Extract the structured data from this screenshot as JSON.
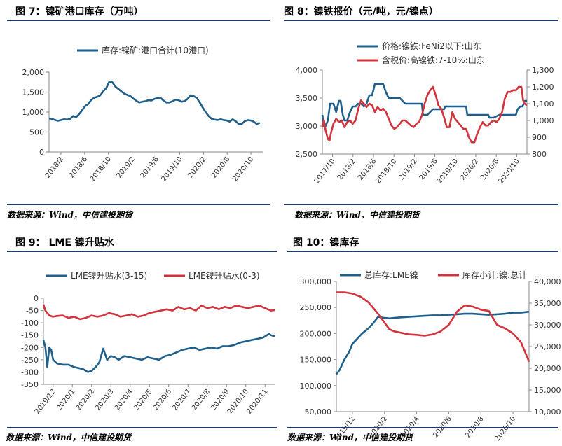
{
  "colors": {
    "blue": "#1f5f8b",
    "red": "#d2343d",
    "rule": "#1f3a6b"
  },
  "panels": [
    {
      "title": "图 7：镍矿港口库存（万吨）",
      "source": "数据来源：Wind，中信建投期货"
    },
    {
      "title": "图 8：镍铁报价（元/吨，元/镍点）",
      "source": "数据来源：Wind，中信建投期货"
    },
    {
      "title": "图 9：  LME 镍升贴水",
      "source": "数据来源：Wind，中信建投期货"
    },
    {
      "title": "图 10：镍库存",
      "source": "数据来源：Wind，中信建投期货"
    }
  ],
  "chart_data": [
    {
      "type": "line",
      "title": "",
      "x_tick_labels": [
        "2018/2",
        "2018/6",
        "2018/10",
        "2019/2",
        "2019/6",
        "2019/10",
        "2020/2",
        "2020/6",
        "2020/10"
      ],
      "x_range": [
        0,
        35.5
      ],
      "y_ticks": [
        "0",
        "500",
        "1,000",
        "1,500",
        "2,000"
      ],
      "ylim": [
        0,
        2000
      ],
      "legend_position": "top",
      "series": [
        {
          "name": "库存:镍矿:港口合计(10港口)",
          "color": "#1f5f8b",
          "x": [
            0,
            0.5,
            1,
            1.5,
            2,
            2.5,
            3,
            3.5,
            4,
            4.5,
            5,
            5.5,
            6,
            6.5,
            7,
            7.5,
            8,
            8.5,
            9,
            9.5,
            10,
            10.5,
            11,
            11.5,
            12,
            12.5,
            13,
            13.5,
            14,
            14.5,
            15,
            15.5,
            16,
            16.5,
            17,
            17.5,
            18,
            18.5,
            19,
            19.5,
            20,
            20.5,
            21,
            21.5,
            22,
            22.5,
            23,
            23.5,
            24,
            24.5,
            25,
            25.5,
            26,
            26.5,
            27,
            27.5,
            28,
            28.5,
            29,
            29.5,
            30,
            30.5,
            31,
            31.5,
            32,
            32.5,
            33,
            33.5,
            34,
            34.5,
            35
          ],
          "values": [
            840,
            830,
            800,
            780,
            800,
            820,
            810,
            830,
            900,
            870,
            950,
            1050,
            1150,
            1200,
            1300,
            1360,
            1380,
            1420,
            1520,
            1600,
            1760,
            1750,
            1640,
            1580,
            1520,
            1460,
            1430,
            1400,
            1340,
            1280,
            1240,
            1260,
            1270,
            1300,
            1290,
            1330,
            1350,
            1360,
            1290,
            1240,
            1240,
            1270,
            1310,
            1300,
            1260,
            1270,
            1330,
            1420,
            1400,
            1360,
            1250,
            1120,
            1000,
            900,
            830,
            810,
            800,
            820,
            800,
            790,
            760,
            820,
            770,
            700,
            700,
            770,
            800,
            790,
            760,
            700,
            730
          ]
        }
      ]
    },
    {
      "type": "line",
      "title": "",
      "x_tick_labels": [
        "2017/10",
        "2018/2",
        "2018/6",
        "2018/10",
        "2019/2",
        "2019/6",
        "2019/10",
        "2020/2",
        "2020/6",
        "2020/10"
      ],
      "x_range": [
        0,
        37
      ],
      "y_left_ticks": [
        "2,500",
        "3,000",
        "3,500",
        "4,000"
      ],
      "ylim_left": [
        2500,
        4000
      ],
      "y_right_ticks": [
        "800",
        "900",
        "1,000",
        "1,100",
        "1,200",
        "1,300"
      ],
      "ylim_right": [
        800,
        1300
      ],
      "legend_position": "top",
      "series": [
        {
          "name": "价格:镍铁:FeNi2以下:山东",
          "color": "#1f5f8b",
          "axis": "left",
          "x": [
            0,
            0.3,
            0.6,
            1,
            1.4,
            2,
            2.5,
            3,
            3.3,
            3.7,
            4,
            4.5,
            5,
            5.5,
            6,
            6.5,
            7,
            7.5,
            8,
            8.5,
            9,
            9.5,
            10,
            11,
            11.5,
            12,
            13,
            14,
            14.5,
            15,
            16,
            17,
            18,
            18.2,
            19,
            20,
            21,
            22,
            22.2,
            23,
            24,
            25,
            26,
            26.2,
            27,
            28,
            29,
            30,
            30.2,
            31,
            32,
            33,
            34,
            35,
            35.3,
            35.8,
            36.2,
            36.6,
            37
          ],
          "values": [
            3200,
            3000,
            3000,
            3100,
            3400,
            3400,
            3250,
            3450,
            3450,
            3200,
            3100,
            3100,
            3250,
            3350,
            3350,
            3400,
            3400,
            3350,
            3400,
            3550,
            3550,
            3750,
            3750,
            3750,
            3600,
            3500,
            3500,
            3500,
            3450,
            3400,
            3400,
            3400,
            3400,
            3200,
            3200,
            3300,
            3300,
            3300,
            3350,
            3350,
            3350,
            3350,
            3350,
            3200,
            3200,
            3200,
            3200,
            3200,
            3150,
            3150,
            3200,
            3200,
            3200,
            3200,
            3300,
            3350,
            3350,
            3450,
            3450
          ]
        },
        {
          "name": "含税价:高镍铁:7-10%:山东",
          "color": "#d2343d",
          "axis": "right",
          "x": [
            0,
            0.3,
            0.6,
            1,
            1.3,
            1.6,
            2,
            2.5,
            3,
            3.5,
            4,
            4.5,
            5,
            5.5,
            6,
            6.5,
            7,
            7.5,
            8,
            8.5,
            9,
            9.5,
            10,
            10.5,
            11,
            11.5,
            12,
            12.5,
            13,
            13.5,
            14,
            14.5,
            15,
            16,
            16.5,
            17,
            17.5,
            18,
            18.5,
            19,
            19.5,
            20,
            20.5,
            21,
            21.5,
            22,
            22.5,
            23,
            23.5,
            24,
            24.5,
            25,
            25.5,
            26,
            26.5,
            27,
            27.5,
            28,
            28.5,
            29,
            29.5,
            30,
            30.5,
            31,
            31.5,
            32,
            32.5,
            33,
            33.5,
            34,
            34.5,
            35,
            35.5,
            36,
            36.3,
            36.6,
            37
          ],
          "values": [
            960,
            1000,
            940,
            890,
            880,
            930,
            980,
            1010,
            990,
            1000,
            960,
            990,
            1000,
            980,
            1000,
            1070,
            1120,
            1100,
            1080,
            1100,
            1090,
            1050,
            1080,
            1060,
            1070,
            1050,
            1010,
            970,
            950,
            960,
            980,
            1000,
            1000,
            970,
            960,
            980,
            990,
            1030,
            1100,
            1150,
            1180,
            1200,
            1150,
            1090,
            1070,
            1020,
            960,
            960,
            1050,
            1010,
            990,
            970,
            950,
            950,
            900,
            870,
            870,
            920,
            960,
            990,
            970,
            970,
            990,
            1000,
            990,
            1010,
            1050,
            1130,
            1170,
            1170,
            1180,
            1180,
            1200,
            1200,
            1120,
            1100,
            1090
          ]
        }
      ]
    },
    {
      "type": "line",
      "title": "",
      "x_tick_labels": [
        "2019/12",
        "2020/1",
        "2020/2",
        "2020/3",
        "2020/4",
        "2020/5",
        "2020/6",
        "2020/7",
        "2020/8",
        "2020/9",
        "2020/10",
        "2020/11"
      ],
      "x_range": [
        0,
        12
      ],
      "y_ticks": [
        "-350",
        "-300",
        "-250",
        "-200",
        "-150",
        "-100",
        "-50",
        "0"
      ],
      "ylim": [
        -350,
        0
      ],
      "legend_position": "top",
      "series": [
        {
          "name": "LME镍升贴水(3-15)",
          "color": "#1f5f8b",
          "x": [
            0,
            0.1,
            0.2,
            0.3,
            0.4,
            0.5,
            0.7,
            1,
            1.3,
            1.6,
            1.9,
            2.1,
            2.3,
            2.5,
            2.7,
            2.9,
            3.1,
            3.3,
            3.5,
            3.7,
            3.9,
            4.2,
            4.5,
            4.8,
            5.1,
            5.4,
            5.7,
            6,
            6.3,
            6.6,
            6.9,
            7.2,
            7.5,
            7.8,
            8.1,
            8.4,
            8.7,
            9,
            9.3,
            9.6,
            9.9,
            10.2,
            10.5,
            10.8,
            11.1,
            11.4,
            11.7,
            11.8,
            12
          ],
          "values": [
            -170,
            -200,
            -280,
            -200,
            -210,
            -250,
            -265,
            -270,
            -270,
            -280,
            -285,
            -290,
            -300,
            -295,
            -280,
            -260,
            -205,
            -250,
            -235,
            -240,
            -250,
            -235,
            -240,
            -245,
            -250,
            -240,
            -245,
            -250,
            -235,
            -230,
            -220,
            -210,
            -205,
            -200,
            -210,
            -205,
            -200,
            -205,
            -195,
            -195,
            -190,
            -180,
            -175,
            -170,
            -165,
            -160,
            -145,
            -150,
            -155
          ]
        },
        {
          "name": "LME镍升贴水(0-3)",
          "color": "#d2343d",
          "x": [
            0,
            0.1,
            0.2,
            0.3,
            0.5,
            0.7,
            1,
            1.3,
            1.6,
            1.9,
            2.2,
            2.5,
            2.8,
            3.1,
            3.4,
            3.7,
            4,
            4.3,
            4.6,
            4.9,
            5.2,
            5.5,
            5.8,
            6.1,
            6.4,
            6.7,
            7,
            7.3,
            7.6,
            7.9,
            8.2,
            8.5,
            8.8,
            9.1,
            9.4,
            9.7,
            10,
            10.3,
            10.6,
            10.9,
            11.2,
            11.5,
            11.8,
            12
          ],
          "values": [
            -25,
            -50,
            -60,
            -70,
            -75,
            -72,
            -70,
            -80,
            -75,
            -85,
            -80,
            -70,
            -75,
            -70,
            -60,
            -65,
            -75,
            -70,
            -65,
            -75,
            -70,
            -60,
            -55,
            -50,
            -45,
            -50,
            -35,
            -45,
            -40,
            -50,
            -30,
            -40,
            -35,
            -45,
            -35,
            -40,
            -30,
            -35,
            -40,
            -35,
            -30,
            -40,
            -50,
            -48
          ]
        }
      ]
    },
    {
      "type": "line",
      "title": "",
      "x_tick_labels": [
        "2019/12",
        "2020/2",
        "2020/4",
        "2020/6",
        "2020/8",
        "2020/10"
      ],
      "x_range": [
        0,
        12
      ],
      "y_left_ticks": [
        "50,000",
        "100,000",
        "150,000",
        "200,000",
        "250,000",
        "300,000"
      ],
      "ylim_left": [
        50000,
        300000
      ],
      "y_right_ticks": [
        "10,000",
        "15,000",
        "20,000",
        "25,000",
        "30,000",
        "35,000",
        "40,000"
      ],
      "ylim_right": [
        10000,
        40000
      ],
      "legend_position": "top",
      "series": [
        {
          "name": "总库存:LME镍",
          "color": "#1f5f8b",
          "axis": "left",
          "x": [
            0,
            0.2,
            0.5,
            0.8,
            1,
            1.3,
            1.6,
            2,
            2.3,
            2.6,
            3,
            3.3,
            3.6,
            4,
            4.5,
            5,
            5.5,
            6,
            6.5,
            7,
            7.5,
            8,
            8.5,
            9,
            9.5,
            10,
            10.5,
            11,
            11.5,
            12
          ],
          "values": [
            122000,
            130000,
            150000,
            165000,
            180000,
            190000,
            200000,
            210000,
            220000,
            232000,
            230000,
            229000,
            230000,
            231000,
            232000,
            233000,
            234000,
            235000,
            235000,
            236000,
            237000,
            238000,
            238000,
            237000,
            236000,
            237000,
            238000,
            240000,
            240000,
            242000
          ]
        },
        {
          "name": "库存小计:镍:总计",
          "color": "#d2343d",
          "axis": "right",
          "x": [
            0,
            0.5,
            1,
            1.5,
            2,
            2.5,
            3,
            3.3,
            3.6,
            4,
            4.5,
            5,
            5.5,
            6,
            6.5,
            7,
            7.5,
            8,
            8.5,
            9,
            9.5,
            10,
            10.5,
            11,
            11.5,
            12
          ],
          "values": [
            37500,
            37500,
            37200,
            36500,
            35200,
            33000,
            30500,
            29000,
            28500,
            28200,
            27800,
            27700,
            27500,
            27800,
            28500,
            30000,
            33000,
            34500,
            34200,
            33500,
            33200,
            30000,
            29200,
            28000,
            26000,
            21500
          ]
        }
      ]
    }
  ]
}
